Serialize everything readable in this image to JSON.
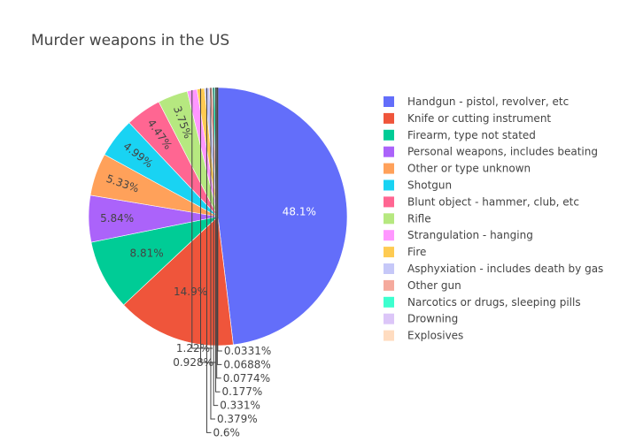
{
  "chart_data": {
    "type": "pie",
    "title": "Murder weapons in the US",
    "legend_position": "right",
    "slices": [
      {
        "label": "Handgun - pistol, revolver, etc",
        "percent_label": "48.1%",
        "value": 48.1,
        "color": "#636efa"
      },
      {
        "label": "Knife or cutting instrument",
        "percent_label": "14.9%",
        "value": 14.9,
        "color": "#EF553B"
      },
      {
        "label": "Firearm, type not stated",
        "percent_label": "8.81%",
        "value": 8.81,
        "color": "#00cc96"
      },
      {
        "label": "Personal weapons, includes beating",
        "percent_label": "5.84%",
        "value": 5.84,
        "color": "#ab63fa"
      },
      {
        "label": "Other or type unknown",
        "percent_label": "5.33%",
        "value": 5.33,
        "color": "#FFA15A"
      },
      {
        "label": "Shotgun",
        "percent_label": "4.99%",
        "value": 4.99,
        "color": "#19d3f3"
      },
      {
        "label": "Blunt object - hammer, club, etc",
        "percent_label": "4.47%",
        "value": 4.47,
        "color": "#FF6692"
      },
      {
        "label": "Rifle",
        "percent_label": "3.75%",
        "value": 3.75,
        "color": "#B6E880"
      },
      {
        "label": "Strangulation - hanging",
        "percent_label": "1.22%",
        "value": 1.22,
        "color": "#FF97FF"
      },
      {
        "label": "Fire",
        "percent_label": "0.928%",
        "value": 0.928,
        "color": "#FECB52"
      },
      {
        "label": "Asphyxiation - includes death by gas",
        "percent_label": "0.6%",
        "value": 0.6,
        "color": "#c6c8f8"
      },
      {
        "label": "Other gun",
        "percent_label": "0.379%",
        "value": 0.379,
        "color": "#f5aa9d"
      },
      {
        "label": "Narcotics or drugs, sleeping pills",
        "percent_label": "0.331%",
        "value": 0.331,
        "color": "#3dffcf"
      },
      {
        "label": "Drowning",
        "percent_label": "0.177%",
        "value": 0.177,
        "color": "#dcc6f8"
      },
      {
        "label": "Explosives",
        "percent_label": "0.0774%",
        "value": 0.0774,
        "color": "#ffdcc0"
      },
      {
        "label": "",
        "percent_label": "0.0688%",
        "value": 0.0688,
        "color": "#aef6f9"
      },
      {
        "label": "",
        "percent_label": "0.0331%",
        "value": 0.0331,
        "color": "#ffc2d3"
      }
    ]
  }
}
